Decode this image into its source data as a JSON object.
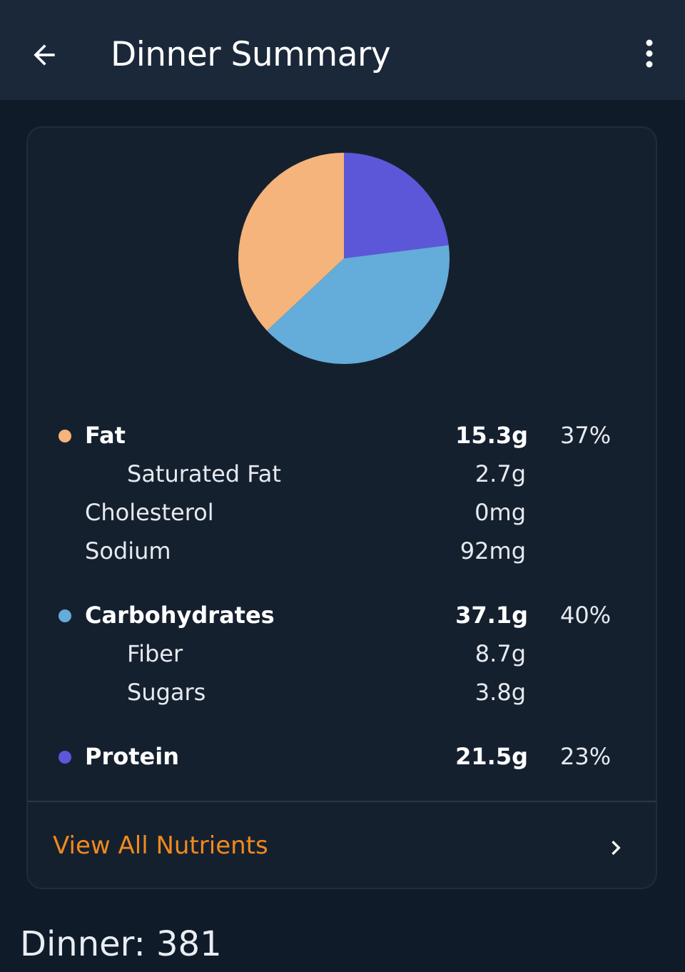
{
  "app_bar": {
    "title": "Dinner Summary",
    "back_icon": "arrow-left-icon",
    "more_icon": "more-vertical-icon"
  },
  "colors": {
    "fat": "#f5b47b",
    "carbohydrates": "#64acd9",
    "protein": "#5c57d9",
    "accent": "#f08a1c"
  },
  "chart_data": {
    "type": "pie",
    "title": "",
    "slices": [
      {
        "label": "Protein",
        "value": 23,
        "color": "#5c57d9"
      },
      {
        "label": "Carbohydrates",
        "value": 40,
        "color": "#64acd9"
      },
      {
        "label": "Fat",
        "value": 37,
        "color": "#f5b47b"
      }
    ]
  },
  "nutrients": {
    "fat": {
      "label": "Fat",
      "amount": "15.3g",
      "percent": "37%"
    },
    "saturated_fat": {
      "label": "Saturated Fat",
      "amount": "2.7g"
    },
    "cholesterol": {
      "label": "Cholesterol",
      "amount": "0mg"
    },
    "sodium": {
      "label": "Sodium",
      "amount": "92mg"
    },
    "carbohydrates": {
      "label": "Carbohydrates",
      "amount": "37.1g",
      "percent": "40%"
    },
    "fiber": {
      "label": "Fiber",
      "amount": "8.7g"
    },
    "sugars": {
      "label": "Sugars",
      "amount": "3.8g"
    },
    "protein": {
      "label": "Protein",
      "amount": "21.5g",
      "percent": "23%"
    }
  },
  "view_all": {
    "label": "View All Nutrients",
    "icon": "chevron-right-icon"
  },
  "footer": {
    "text": "Dinner: 381"
  }
}
